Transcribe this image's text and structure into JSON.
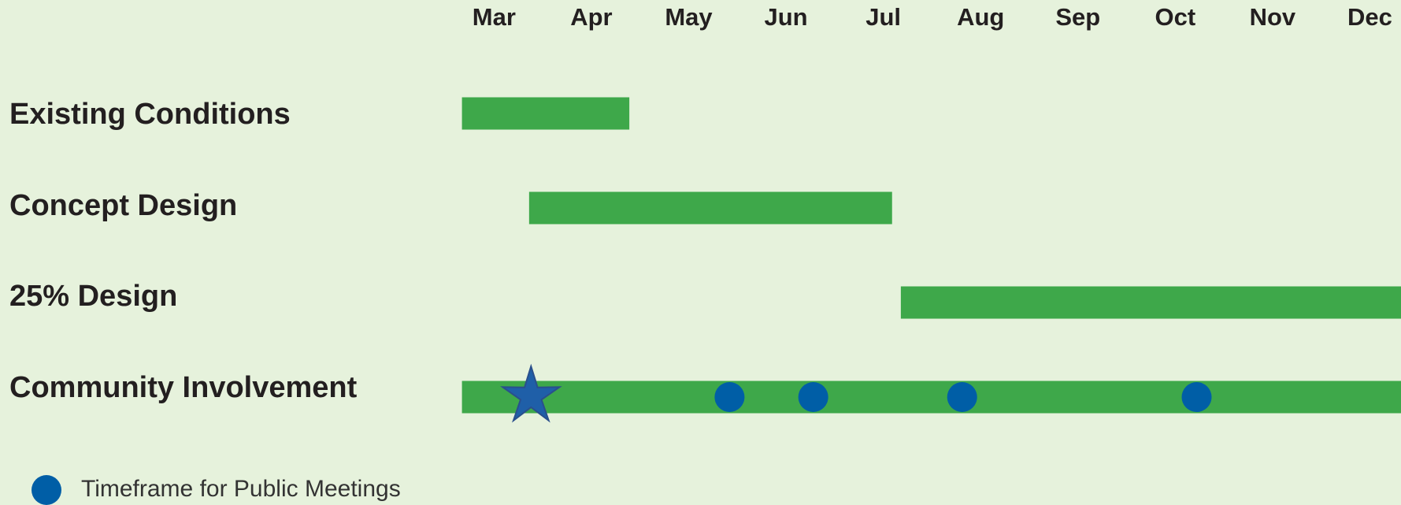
{
  "chart_data": {
    "type": "gantt",
    "categories": [
      "Mar",
      "Apr",
      "May",
      "Jun",
      "Jul",
      "Aug",
      "Sep",
      "Oct",
      "Nov",
      "Dec"
    ],
    "xlim": [
      -0.33,
      9.32
    ],
    "bar_color": "#3ea84a",
    "tasks": [
      {
        "name": "Existing Conditions",
        "start": -0.33,
        "end": 1.39
      },
      {
        "name": "Concept Design",
        "start": 0.36,
        "end": 4.09
      },
      {
        "name": "25% Design",
        "start": 4.18,
        "end": 9.32
      },
      {
        "name": "Community Involvement",
        "start": -0.33,
        "end": 9.32,
        "star": 0.38,
        "meetings": [
          2.42,
          3.28,
          4.81,
          7.22
        ]
      }
    ],
    "marker_color": "#005ea6",
    "star_color": "#1f5fa8",
    "legend": {
      "label": "Timeframe for Public Meetings"
    }
  }
}
